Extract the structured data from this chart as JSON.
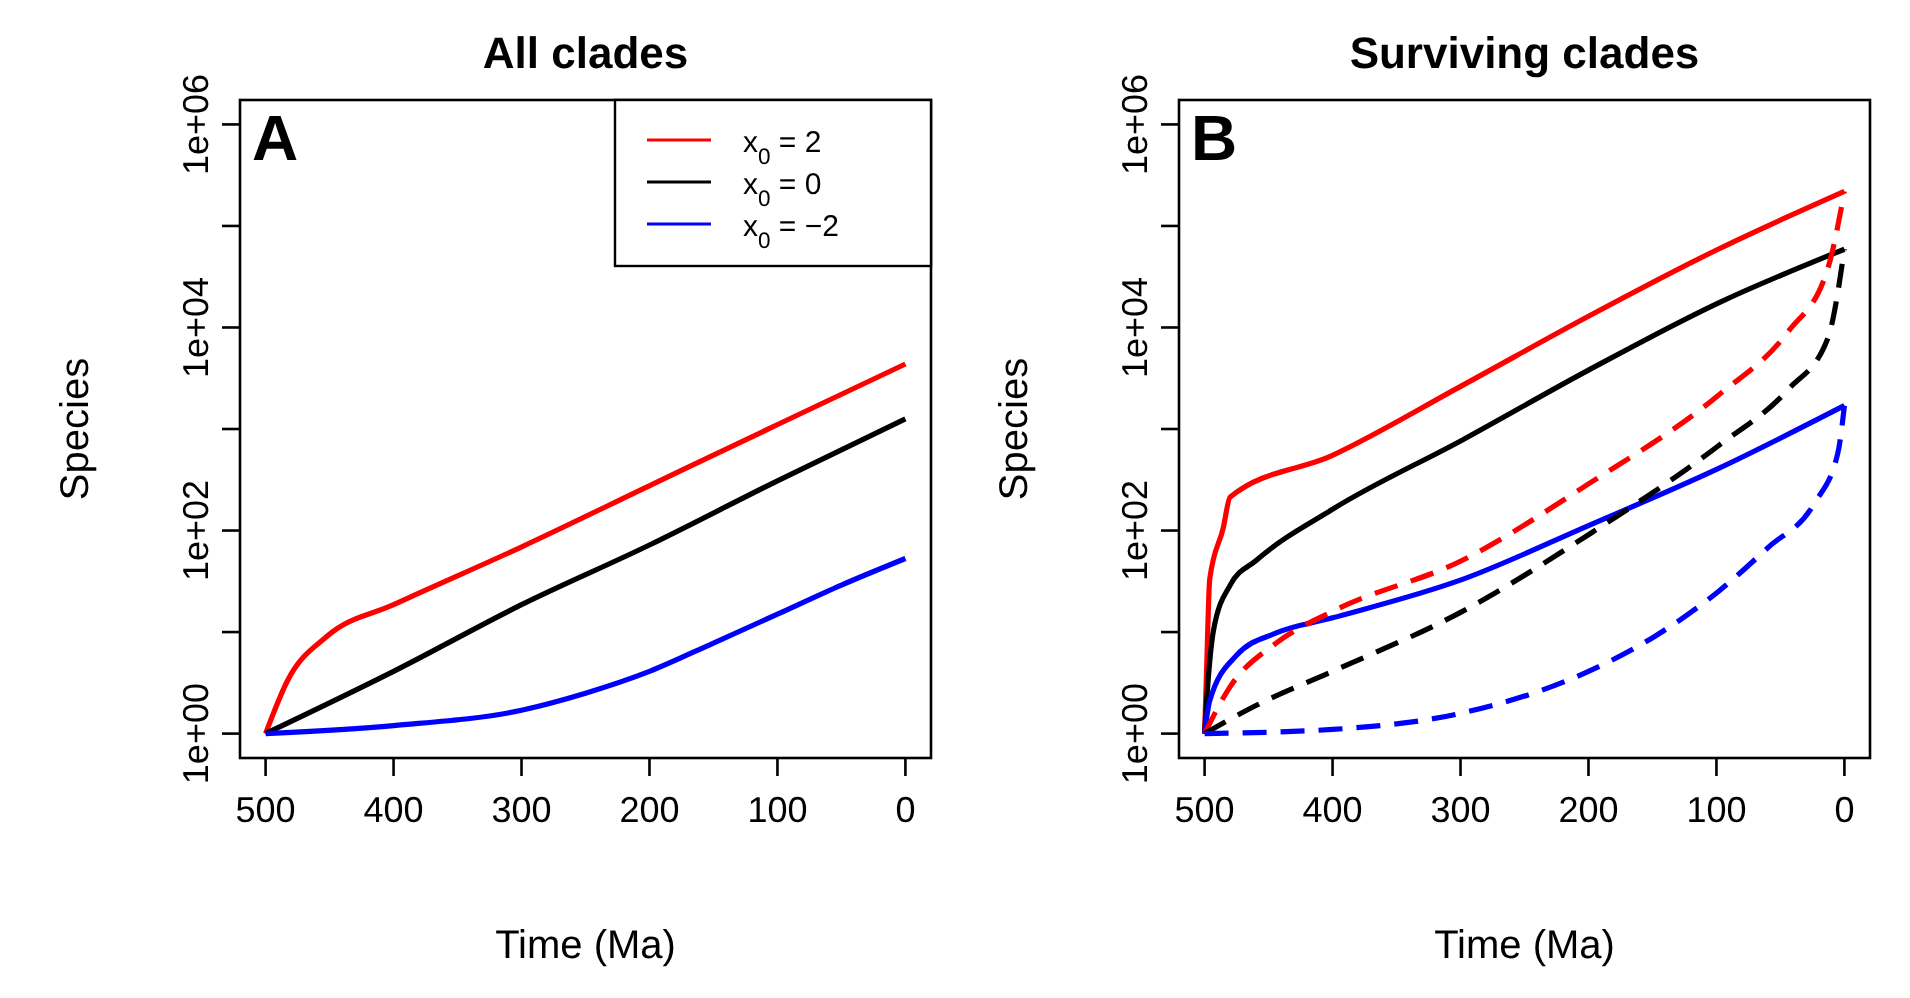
{
  "chart_data": [
    {
      "type": "line",
      "title": "All clades",
      "xlabel": "Time (Ma)",
      "ylabel": "Species",
      "annotations": [
        "A"
      ],
      "log": "y",
      "grid": false,
      "legend": "top right",
      "xlim": [
        520,
        -20
      ],
      "xticks": [
        500,
        400,
        300,
        200,
        100,
        0
      ],
      "ylim": [
        0.575,
        1740000
      ],
      "yticks": [
        {
          "value": 1,
          "label": "1e+00"
        },
        {
          "value": 10,
          "label": null
        },
        {
          "value": 100,
          "label": "1e+02"
        },
        {
          "value": 1000,
          "label": null
        },
        {
          "value": 10000,
          "label": "1e+04"
        },
        {
          "value": 100000,
          "label": null
        },
        {
          "value": 1000000,
          "label": "1e+06"
        }
      ],
      "series": [
        {
          "name": "x$_{0}$ = 2",
          "color": "#ff0000",
          "line_style": "solid",
          "x": [
            500,
            483,
            452,
            400,
            301,
            197,
            99,
            0
          ],
          "values": [
            1,
            3.3,
            9.1,
            18.6,
            68,
            288,
            1120,
            4370
          ]
        },
        {
          "name": "x$_{0}$ = 0",
          "color": "#000000",
          "line_style": "solid",
          "x": [
            500,
            400,
            300,
            200,
            100,
            0
          ],
          "values": [
            1,
            4.1,
            18.6,
            72,
            309,
            1260
          ]
        },
        {
          "name": "x$_{0}$ = −2",
          "color": "#0000ff",
          "line_style": "solid",
          "x": [
            500,
            400,
            300,
            250,
            200,
            150,
            100,
            50,
            0
          ],
          "values": [
            1,
            1.2,
            1.7,
            2.5,
            4.1,
            7.8,
            15,
            29,
            53
          ]
        }
      ]
    },
    {
      "type": "line",
      "title": "Surviving clades",
      "xlabel": "Time (Ma)",
      "ylabel": "Species",
      "annotations": [
        "B"
      ],
      "log": "y",
      "grid": false,
      "legend": false,
      "xlim": [
        520,
        -20
      ],
      "xticks": [
        500,
        400,
        300,
        200,
        100,
        0
      ],
      "ylim": [
        0.575,
        1740000
      ],
      "yticks": [
        {
          "value": 1,
          "label": "1e+00"
        },
        {
          "value": 10,
          "label": null
        },
        {
          "value": 100,
          "label": "1e+02"
        },
        {
          "value": 1000,
          "label": null
        },
        {
          "value": 10000,
          "label": "1e+04"
        },
        {
          "value": 100000,
          "label": null
        },
        {
          "value": 1000000,
          "label": "1e+06"
        }
      ],
      "series": [
        {
          "color": "#ff0000",
          "line_style": "solid",
          "x": [
            500,
            498.4,
            496,
            485.5,
            480,
            400,
            298.5,
            200,
            98.7,
            0
          ],
          "values": [
            1,
            4.4,
            33,
            105,
            214,
            550,
            2690,
            12900,
            59000,
            219000
          ]
        },
        {
          "color": "#000000",
          "line_style": "solid",
          "x": [
            500,
            498.4,
            493,
            480,
            459.5,
            400,
            298.5,
            200,
            98.7,
            0
          ],
          "values": [
            1,
            2.1,
            10.5,
            29,
            51,
            162,
            780,
            3800,
            17400,
            59000
          ]
        },
        {
          "color": "#0000ff",
          "line_style": "solid",
          "x": [
            500,
            496,
            475,
            444,
            400,
            298.5,
            200,
            98.7,
            0
          ],
          "values": [
            1,
            2.1,
            5.9,
            9.8,
            13.8,
            33,
            112,
            407,
            1700
          ]
        },
        {
          "color": "#ff0000",
          "line_style": "dashed",
          "x": [
            500,
            480,
            444,
            400,
            298.5,
            200,
            98.7,
            44,
            13,
            0
          ],
          "values": [
            1,
            2.9,
            7.8,
            16,
            51,
            288,
            2140,
            9100,
            38000,
            219000
          ]
        },
        {
          "color": "#000000",
          "line_style": "dashed",
          "x": [
            500,
            459.5,
            400,
            298.5,
            200,
            98.7,
            44,
            13,
            0
          ],
          "values": [
            1,
            1.9,
            4.1,
            16,
            91,
            680,
            2450,
            7800,
            59000
          ]
        },
        {
          "color": "#0000ff",
          "line_style": "dashed",
          "x": [
            500,
            400,
            298.5,
            200,
            148,
            98.7,
            59.7,
            23.4,
            5,
            0
          ],
          "values": [
            1,
            1.1,
            1.6,
            4.1,
            9.1,
            25,
            68,
            186,
            590,
            1700
          ]
        }
      ]
    }
  ]
}
